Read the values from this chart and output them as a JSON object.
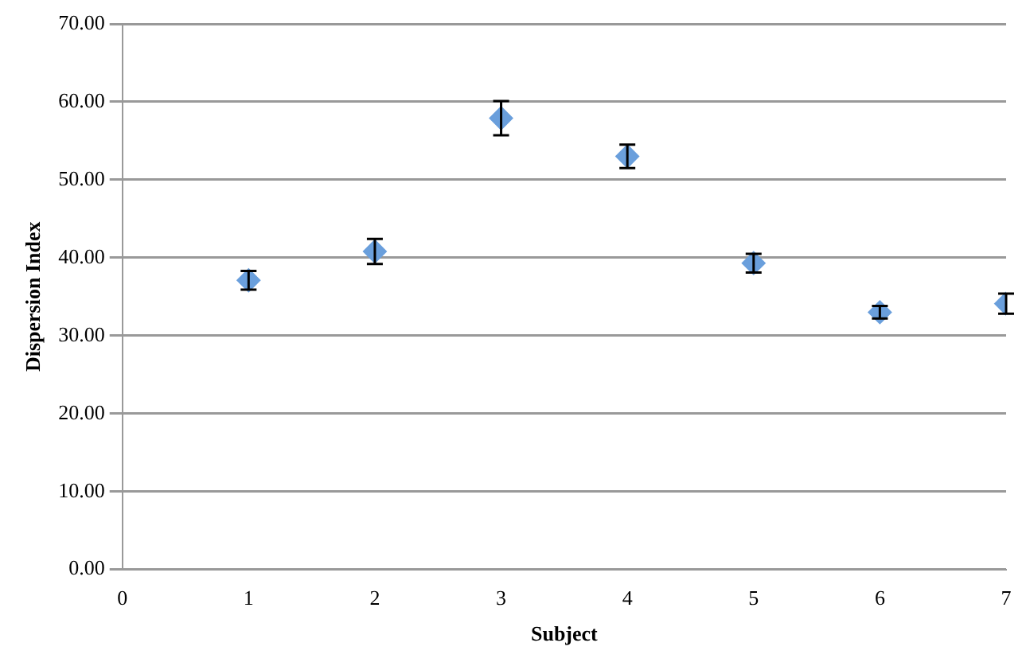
{
  "chart_data": {
    "type": "scatter",
    "xlabel": "Subject",
    "ylabel": "Dispersion Index",
    "x": [
      1,
      2,
      3,
      4,
      5,
      6,
      7
    ],
    "values": [
      37.1,
      40.8,
      57.9,
      53.0,
      39.3,
      33.0,
      34.1
    ],
    "errors": [
      1.2,
      1.6,
      2.2,
      1.5,
      1.2,
      0.8,
      1.3
    ],
    "color": "#6a9fdc",
    "marker": "diamond",
    "grid": "y",
    "legend": false,
    "xlim": [
      0,
      7
    ],
    "xticks": [
      0,
      1,
      2,
      3,
      4,
      5,
      6,
      7
    ],
    "ylim": [
      0,
      70
    ],
    "yticks": [
      {
        "value": 0,
        "label": "0.00"
      },
      {
        "value": 10,
        "label": "10.00"
      },
      {
        "value": 20,
        "label": "20.00"
      },
      {
        "value": 30,
        "label": "30.00"
      },
      {
        "value": 40,
        "label": "40.00"
      },
      {
        "value": 50,
        "label": "50.00"
      },
      {
        "value": 60,
        "label": "60.00"
      },
      {
        "value": 70,
        "label": "70.00"
      }
    ]
  }
}
